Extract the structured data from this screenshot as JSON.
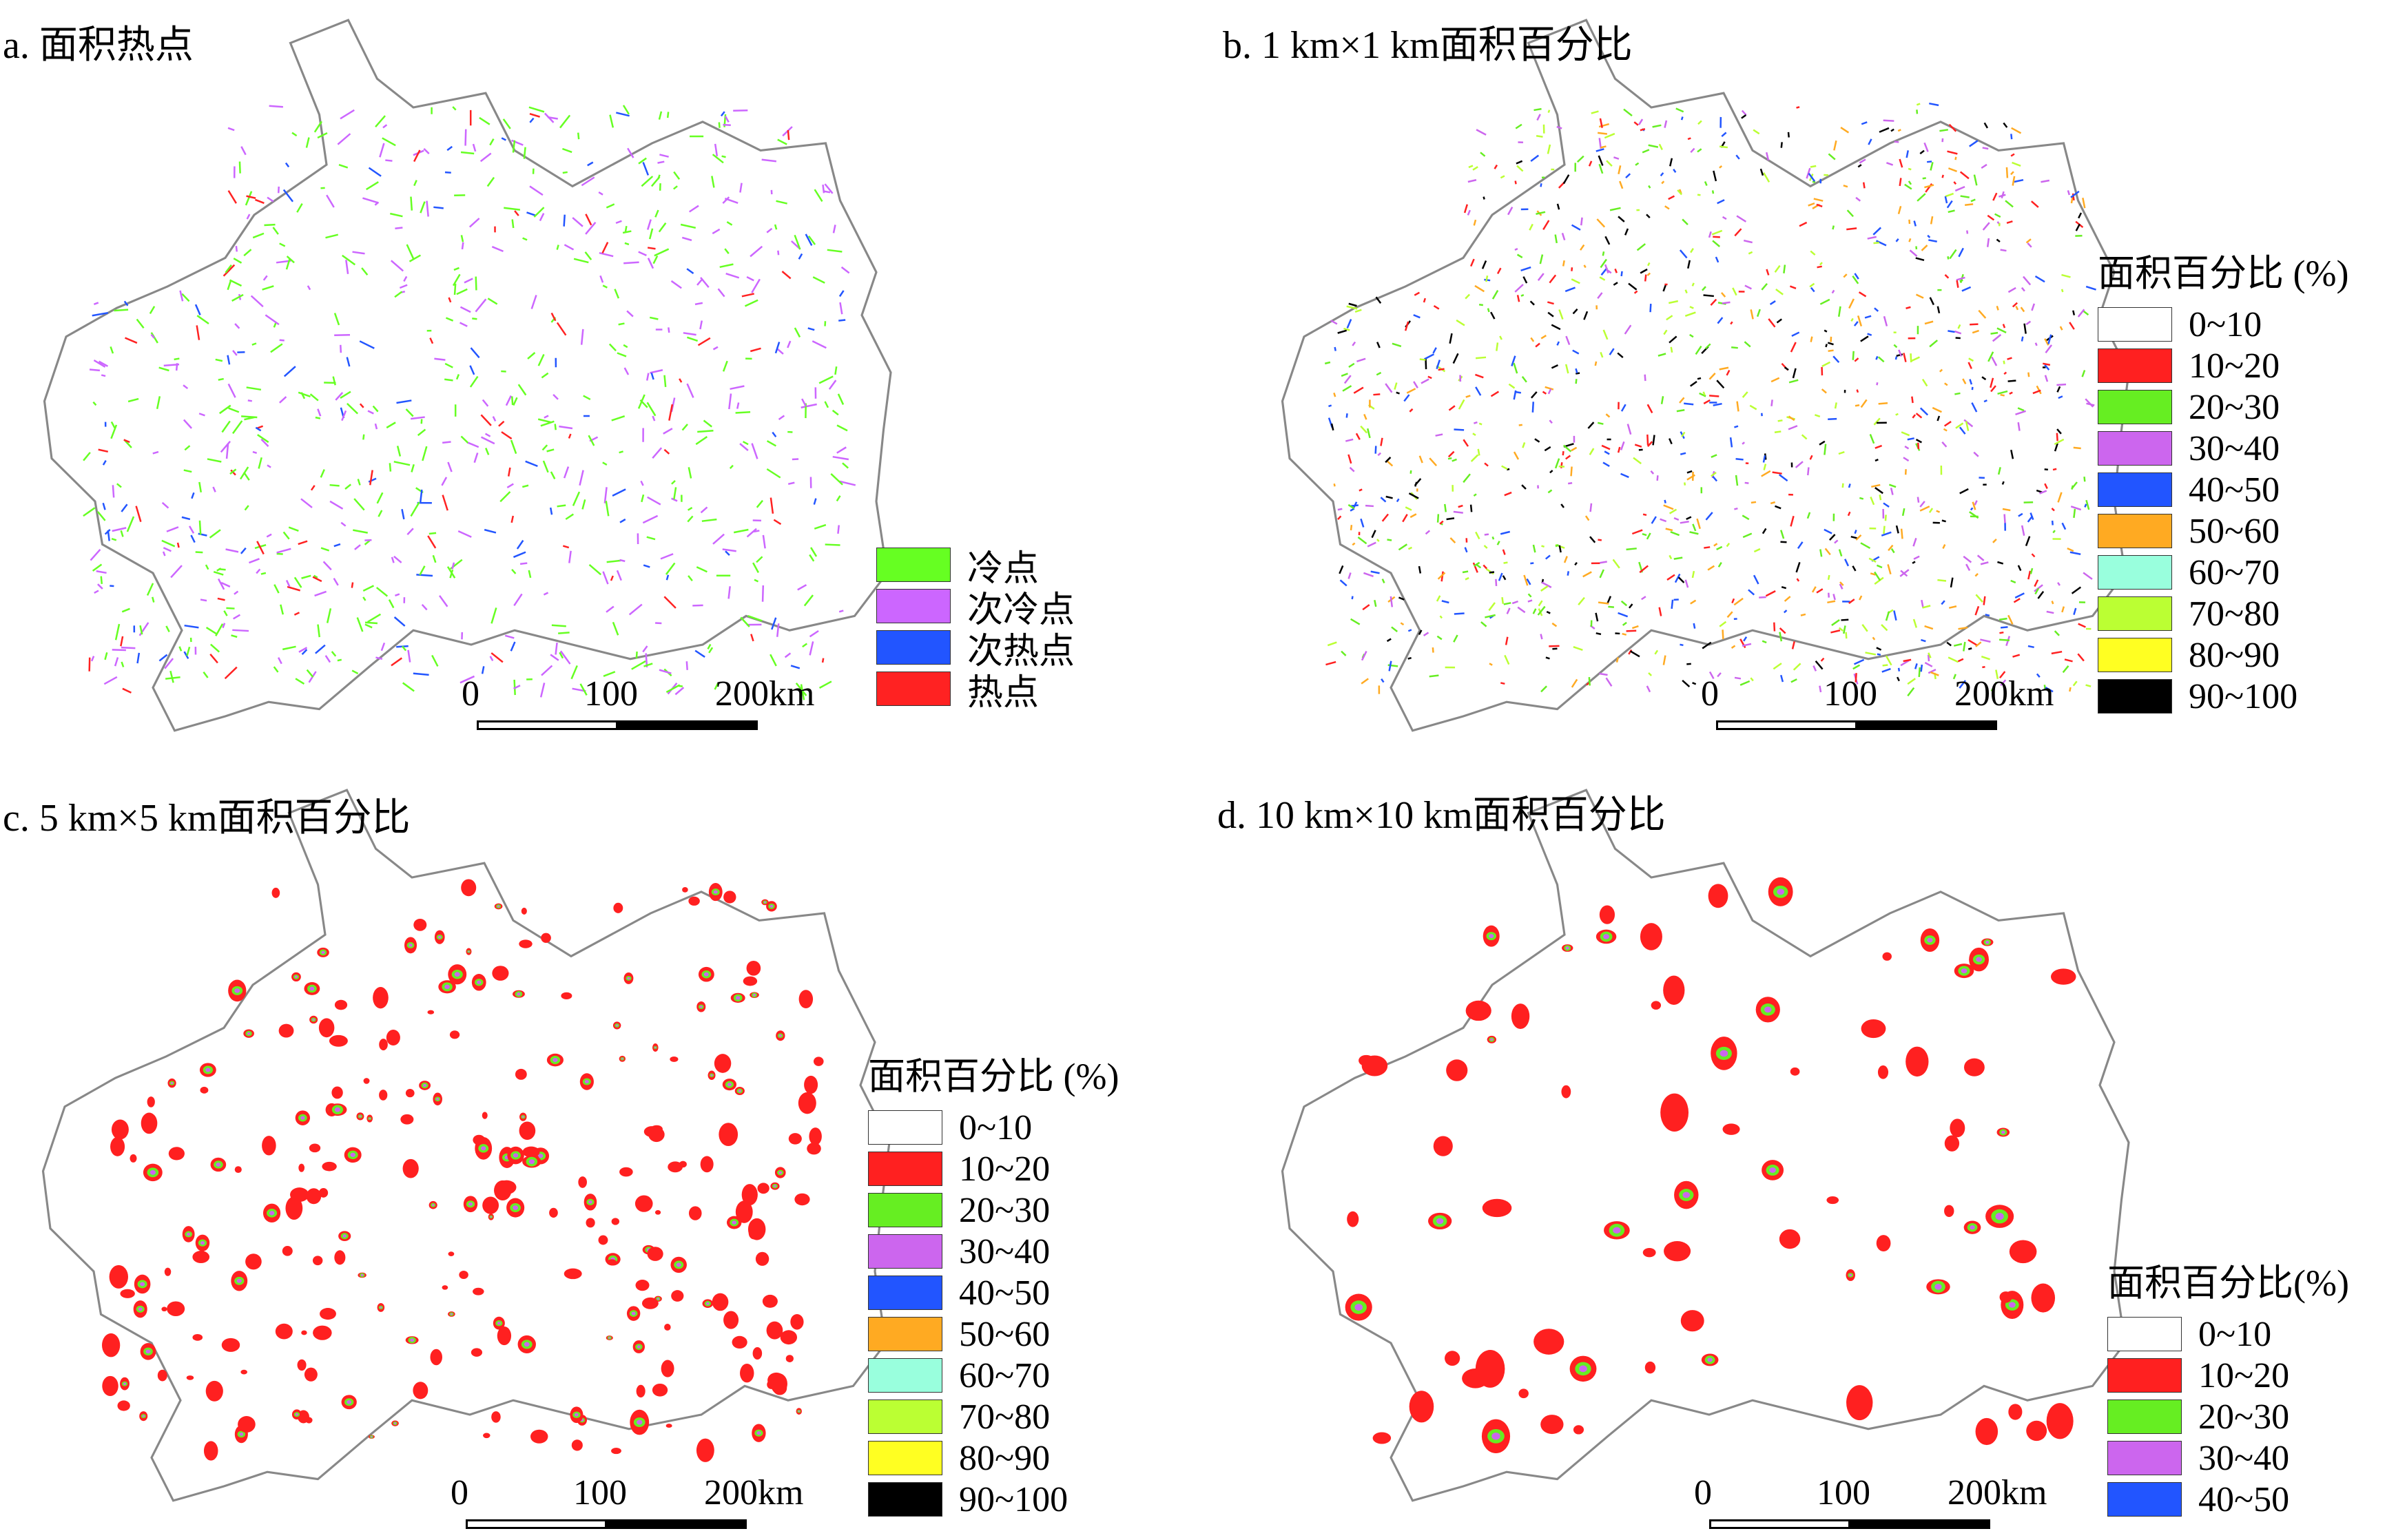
{
  "panels": [
    {
      "id": "a",
      "title": "a. 面积热点",
      "legend": {
        "title": "",
        "items": [
          {
            "label": "冷点",
            "color": "#66ff22"
          },
          {
            "label": "次冷点",
            "color": "#cc66ff"
          },
          {
            "label": "次热点",
            "color": "#2255ff"
          },
          {
            "label": "热点",
            "color": "#ff2222"
          }
        ]
      },
      "scalebar": {
        "labels": [
          "0",
          "100",
          "200km"
        ]
      }
    },
    {
      "id": "b",
      "title": "b. 1 km×1 km面积百分比",
      "legend": {
        "title": "面积百分比 (%)",
        "items": [
          {
            "label": "0~10",
            "color": "#ffffff"
          },
          {
            "label": "10~20",
            "color": "#ff2020"
          },
          {
            "label": "20~30",
            "color": "#66ee22"
          },
          {
            "label": "30~40",
            "color": "#cc66ee"
          },
          {
            "label": "40~50",
            "color": "#2255ff"
          },
          {
            "label": "50~60",
            "color": "#ffaa22"
          },
          {
            "label": "60~70",
            "color": "#99ffdd"
          },
          {
            "label": "70~80",
            "color": "#bbff33"
          },
          {
            "label": "80~90",
            "color": "#ffff22"
          },
          {
            "label": "90~100",
            "color": "#000000"
          }
        ]
      },
      "scalebar": {
        "labels": [
          "0",
          "100",
          "200km"
        ]
      }
    },
    {
      "id": "c",
      "title": "c. 5 km×5 km面积百分比",
      "legend": {
        "title": "面积百分比 (%)",
        "items": [
          {
            "label": "0~10",
            "color": "#ffffff"
          },
          {
            "label": "10~20",
            "color": "#ff2020"
          },
          {
            "label": "20~30",
            "color": "#66ee22"
          },
          {
            "label": "30~40",
            "color": "#cc66ee"
          },
          {
            "label": "40~50",
            "color": "#2255ff"
          },
          {
            "label": "50~60",
            "color": "#ffaa22"
          },
          {
            "label": "60~70",
            "color": "#99ffdd"
          },
          {
            "label": "70~80",
            "color": "#bbff33"
          },
          {
            "label": "80~90",
            "color": "#ffff22"
          },
          {
            "label": "90~100",
            "color": "#000000"
          }
        ]
      },
      "scalebar": {
        "labels": [
          "0",
          "100",
          "200km"
        ]
      }
    },
    {
      "id": "d",
      "title": "d. 10 km×10 km面积百分比",
      "legend": {
        "title": "面积百分比(%)",
        "items": [
          {
            "label": "0~10",
            "color": "#ffffff"
          },
          {
            "label": "10~20",
            "color": "#ff2020"
          },
          {
            "label": "20~30",
            "color": "#66ee22"
          },
          {
            "label": "30~40",
            "color": "#cc66ee"
          },
          {
            "label": "40~50",
            "color": "#2255ff"
          }
        ]
      },
      "scalebar": {
        "labels": [
          "0",
          "100",
          "200km"
        ]
      }
    }
  ]
}
